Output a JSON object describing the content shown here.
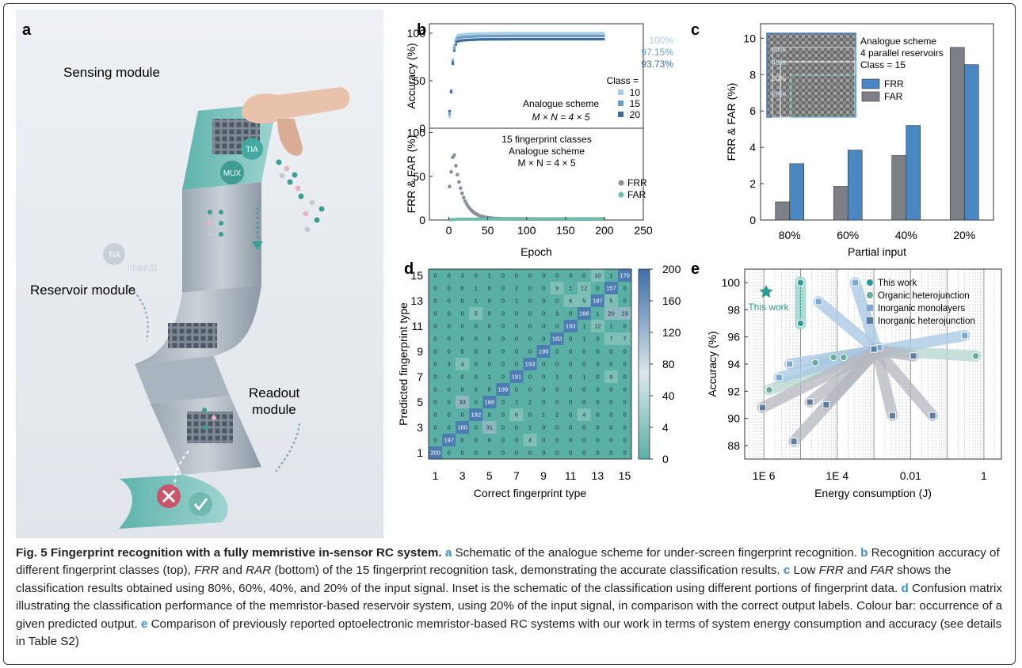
{
  "panels": {
    "a": {
      "letter": "a",
      "labels": {
        "sensing": "Sensing module",
        "reservoir": "Reservoir module",
        "readout1": "Readout",
        "readout2": "module",
        "tia1": "TIA",
        "mux": "MUX",
        "tia2": "TIA",
        "demux": "DEMUX"
      }
    },
    "b": {
      "letter": "b",
      "top": {
        "ylabel": "Accuracy (%)",
        "yticks": [
          "0",
          "50",
          "100"
        ],
        "values": [
          "100%",
          "97.15%",
          "93.73%"
        ],
        "legend_title": "Class =",
        "legend": [
          "10",
          "15",
          "20"
        ],
        "note1": "Analogue scheme",
        "note2": "M × N = 4 × 5"
      },
      "bottom": {
        "ylabel": "FRR & FAR (%)",
        "yticks": [
          "0",
          "50",
          "100"
        ],
        "note1": "15 fingerprint classes",
        "note2": "Analogue scheme",
        "note3": "M × N = 4 × 5",
        "legend": [
          "FRR",
          "FAR"
        ]
      },
      "xlabel": "Epoch",
      "xticks": [
        "0",
        "50",
        "100",
        "150",
        "200",
        "250"
      ],
      "colors": {
        "c10": "#a9cde3",
        "c15": "#6d9dc5",
        "c20": "#3f6b98",
        "frr": "#8a8f9c",
        "far": "#6fbcad"
      }
    },
    "c": {
      "letter": "c",
      "ylabel": "FRR & FAR (%)",
      "xlabel": "Partial input",
      "yticks": [
        "0",
        "2",
        "4",
        "6",
        "8",
        "10"
      ],
      "inset_text": [
        "Analogue scheme",
        "4 parallel reservoirs",
        "Class = 15"
      ],
      "inset_marks": [
        "80%",
        "60%",
        "40%",
        "20%"
      ],
      "legend": [
        "FRR",
        "FAR"
      ]
    },
    "d": {
      "letter": "d",
      "ylabel": "Predicted fingerprint type",
      "xlabel": "Correct fingerprint type",
      "ticks": [
        "1",
        "3",
        "5",
        "7",
        "9",
        "11",
        "13",
        "15"
      ],
      "colorbar_ticks": [
        "0",
        "4",
        "40",
        "80",
        "120",
        "160",
        "200"
      ]
    },
    "e": {
      "letter": "e",
      "ylabel": "Accuracy (%)",
      "xlabel": "Energy consumption (J)",
      "yticks": [
        "88",
        "90",
        "92",
        "94",
        "96",
        "98",
        "100"
      ],
      "xticks": [
        "1E 6",
        "1E 4",
        "0.01",
        "1"
      ],
      "this_work_label": "This work",
      "legend": [
        "This work",
        "Organic heterojunction",
        "Inorganic monolayers",
        "Inorganic heterojunction"
      ]
    }
  },
  "caption": {
    "title": "Fig. 5 Fingerprint recognition with a fully memristive in-sensor RC system.",
    "a_letter": "a",
    "a_text": " Schematic of the analogue scheme for under-screen fingerprint recognition.",
    "b_letter": "b",
    "b_text_1": " Recognition accuracy of different fingerprint classes (top), ",
    "b_frr": "FRR",
    "b_and": " and ",
    "b_rar": "RAR",
    "b_text_2": " (bottom) of the 15 fingerprint recognition task, demonstrating the accurate classification results.",
    "c_letter": "c",
    "c_text_1": " Low ",
    "c_frr": "FRR",
    "c_and": " and ",
    "c_far": "FAR",
    "c_text_2": " shows the classification results obtained using 80%, 60%, 40%, and 20% of the input signal. Inset is the schematic of the classification using different portions of fingerprint data.",
    "d_letter": "d",
    "d_text": " Confusion matrix illustrating the classification performance of the memristor-based reservoir system, using 20% of the input signal, in comparison with the correct output labels. Colour bar: occurrence of a given predicted output.",
    "e_letter": "e",
    "e_text": " Comparison of previously reported optoelectronic memristor-based RC systems with our work in terms of system energy consumption and accuracy (see details in Table S2)"
  },
  "chart_data": [
    {
      "type": "scatter",
      "title": "",
      "xlabel": "Epoch",
      "ylabel": "Accuracy (%)",
      "xlim": [
        -25,
        250
      ],
      "ylim": [
        0,
        110
      ],
      "series": [
        {
          "name": "10",
          "final": 100
        },
        {
          "name": "15",
          "final": 97.15
        },
        {
          "name": "20",
          "final": 93.73
        }
      ]
    },
    {
      "type": "scatter",
      "title": "",
      "xlabel": "Epoch",
      "ylabel": "FRR & FAR (%)",
      "xlim": [
        -25,
        250
      ],
      "ylim": [
        0,
        105
      ],
      "series": [
        {
          "name": "FRR",
          "peak": 80,
          "peak_epoch": 6
        },
        {
          "name": "FAR",
          "final": 1
        }
      ]
    },
    {
      "type": "bar",
      "xlabel": "Partial input",
      "ylabel": "FRR & FAR (%)",
      "ylim": [
        0,
        10.8
      ],
      "categories": [
        "80%",
        "60%",
        "40%",
        "20%"
      ],
      "series": [
        {
          "name": "FAR",
          "values": [
            1.0,
            1.85,
            3.55,
            9.5
          ]
        },
        {
          "name": "FRR",
          "values": [
            3.1,
            3.85,
            5.2,
            8.55
          ]
        }
      ]
    },
    {
      "type": "heatmap",
      "xlabel": "Correct fingerprint type",
      "ylabel": "Predicted fingerprint type",
      "colorbar_ticks": [
        0,
        4,
        40,
        80,
        120,
        160,
        200
      ],
      "rows_top_to_bottom": [
        [
          0,
          0,
          3,
          0,
          1,
          0,
          0,
          0,
          0,
          0,
          3,
          0,
          10,
          1,
          170
        ],
        [
          0,
          0,
          0,
          1,
          0,
          0,
          2,
          0,
          0,
          9,
          1,
          12,
          0,
          157,
          0
        ],
        [
          0,
          0,
          0,
          1,
          0,
          0,
          1,
          0,
          0,
          0,
          6,
          5,
          187,
          5,
          0
        ],
        [
          0,
          0,
          0,
          5,
          0,
          0,
          0,
          0,
          0,
          3,
          0,
          166,
          1,
          20,
          23
        ],
        [
          0,
          0,
          0,
          0,
          0,
          0,
          0,
          0,
          0,
          0,
          193,
          1,
          12,
          1,
          0
        ],
        [
          0,
          0,
          0,
          0,
          0,
          0,
          0,
          0,
          0,
          182,
          0,
          1,
          0,
          7,
          7
        ],
        [
          0,
          0,
          0,
          0,
          0,
          0,
          0,
          0,
          199,
          0,
          0,
          0,
          0,
          0,
          0
        ],
        [
          0,
          3,
          4,
          0,
          0,
          0,
          0,
          193,
          0,
          0,
          0,
          0,
          0,
          0,
          0
        ],
        [
          0,
          0,
          0,
          0,
          1,
          0,
          191,
          0,
          0,
          1,
          0,
          1,
          0,
          9,
          0
        ],
        [
          0,
          0,
          0,
          0,
          0,
          199,
          0,
          0,
          0,
          0,
          0,
          0,
          0,
          0,
          0
        ],
        [
          0,
          0,
          33,
          0,
          168,
          0,
          1,
          2,
          0,
          0,
          0,
          0,
          0,
          0,
          0
        ],
        [
          0,
          0,
          0,
          192,
          0,
          0,
          6,
          0,
          1,
          2,
          0,
          4,
          0,
          0,
          0
        ],
        [
          0,
          0,
          160,
          0,
          31,
          0,
          0,
          1,
          0,
          0,
          0,
          0,
          0,
          0,
          0
        ],
        [
          0,
          197,
          0,
          0,
          0,
          0,
          0,
          4,
          0,
          0,
          0,
          0,
          0,
          0,
          0
        ],
        [
          200,
          0,
          0,
          0,
          0,
          0,
          0,
          0,
          0,
          0,
          0,
          0,
          0,
          0,
          0
        ]
      ]
    },
    {
      "type": "scatter",
      "xlabel": "Energy consumption (J)",
      "ylabel": "Accuracy (%)",
      "xscale": "log",
      "xlim": [
        3e-07,
        3
      ],
      "ylim": [
        87,
        101
      ],
      "series": [
        {
          "name": "This work",
          "points": [
            [
              1e-05,
              100
            ],
            [
              1e-05,
              97
            ]
          ]
        },
        {
          "name": "Organic heterojunction",
          "points": [
            [
              1.4e-06,
              92.1
            ],
            [
              2.5e-05,
              94.1
            ],
            [
              0.00015,
              94.5
            ],
            [
              8e-05,
              94.5
            ],
            [
              0.6,
              94.6
            ]
          ]
        },
        {
          "name": "Inorganic monolayers",
          "points": [
            [
              2.6e-06,
              93
            ],
            [
              3.1e-05,
              98.6
            ],
            [
              0.00031,
              100
            ],
            [
              5e-06,
              94
            ],
            [
              0.3,
              96.1
            ],
            [
              0.0014,
              95.2
            ]
          ]
        },
        {
          "name": "Inorganic heterojunction",
          "points": [
            [
              9.2e-07,
              90.8
            ],
            [
              1.8e-05,
              91.2
            ],
            [
              6.6e-06,
              88.3
            ],
            [
              5e-05,
              91
            ],
            [
              0.001,
              95.1
            ],
            [
              0.0032,
              90.2
            ],
            [
              0.012,
              94.6
            ],
            [
              0.04,
              90.2
            ]
          ]
        }
      ]
    }
  ]
}
